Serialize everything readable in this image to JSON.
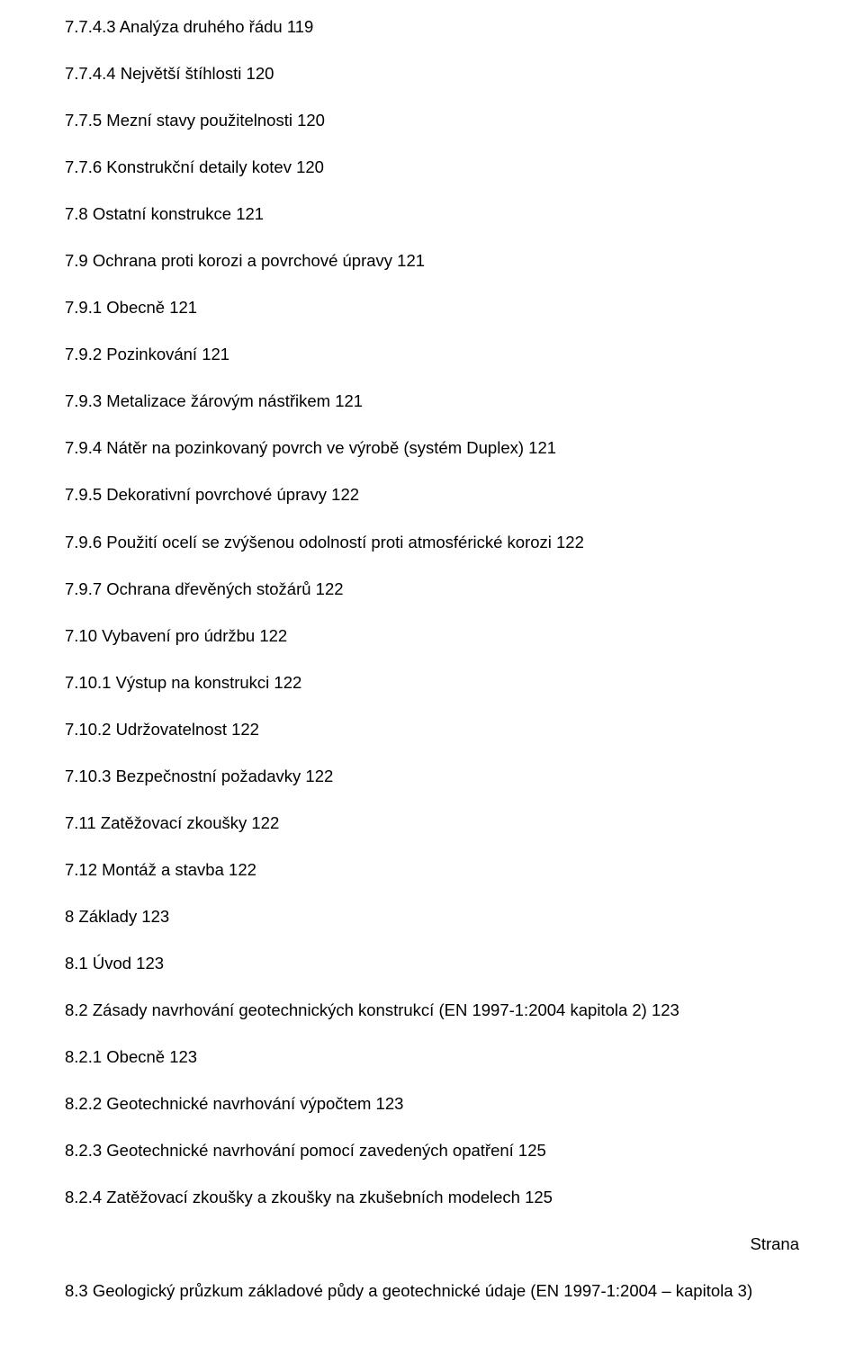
{
  "entries": [
    {
      "text": "7.7.4.3 Analýza druhého řádu 119"
    },
    {
      "text": "7.7.4.4 Největší štíhlosti 120"
    },
    {
      "text": "7.7.5 Mezní stavy použitelnosti 120"
    },
    {
      "text": "7.7.6 Konstrukční detaily kotev 120"
    },
    {
      "text": "7.8 Ostatní konstrukce 121"
    },
    {
      "text": "7.9 Ochrana proti korozi a povrchové úpravy 121"
    },
    {
      "text": "7.9.1 Obecně 121"
    },
    {
      "text": "7.9.2 Pozinkování 121"
    },
    {
      "text": "7.9.3 Metalizace žárovým nástřikem 121"
    },
    {
      "text": "7.9.4 Nátěr na pozinkovaný povrch ve výrobě (systém Duplex) 121"
    },
    {
      "text": "7.9.5 Dekorativní povrchové úpravy 122"
    },
    {
      "text": "7.9.6 Použití ocelí se zvýšenou odolností proti atmosférické korozi 122"
    },
    {
      "text": "7.9.7 Ochrana dřevěných stožárů 122"
    },
    {
      "text": "7.10 Vybavení pro údržbu 122"
    },
    {
      "text": "7.10.1 Výstup na konstrukci 122"
    },
    {
      "text": "7.10.2 Udržovatelnost 122"
    },
    {
      "text": "7.10.3 Bezpečnostní požadavky 122"
    },
    {
      "text": "7.11 Zatěžovací zkoušky 122"
    },
    {
      "text": "7.12 Montáž a stavba 122"
    },
    {
      "text": "8 Základy 123"
    },
    {
      "text": "8.1 Úvod 123"
    },
    {
      "text": "8.2 Zásady navrhování geotechnických konstrukcí (EN 1997-1:2004 kapitola 2) 123"
    },
    {
      "text": "8.2.1 Obecně 123"
    },
    {
      "text": "8.2.2 Geotechnické navrhování výpočtem 123"
    },
    {
      "text": "8.2.3 Geotechnické navrhování pomocí zavedených opatření 125"
    },
    {
      "text": "8.2.4 Zatěžovací zkoušky a zkoušky na zkušebních modelech 125"
    }
  ],
  "page_label": "Strana",
  "last_entry": "8.3 Geologický průzkum základové půdy a geotechnické údaje (EN 1997-1:2004 – kapitola 3)"
}
